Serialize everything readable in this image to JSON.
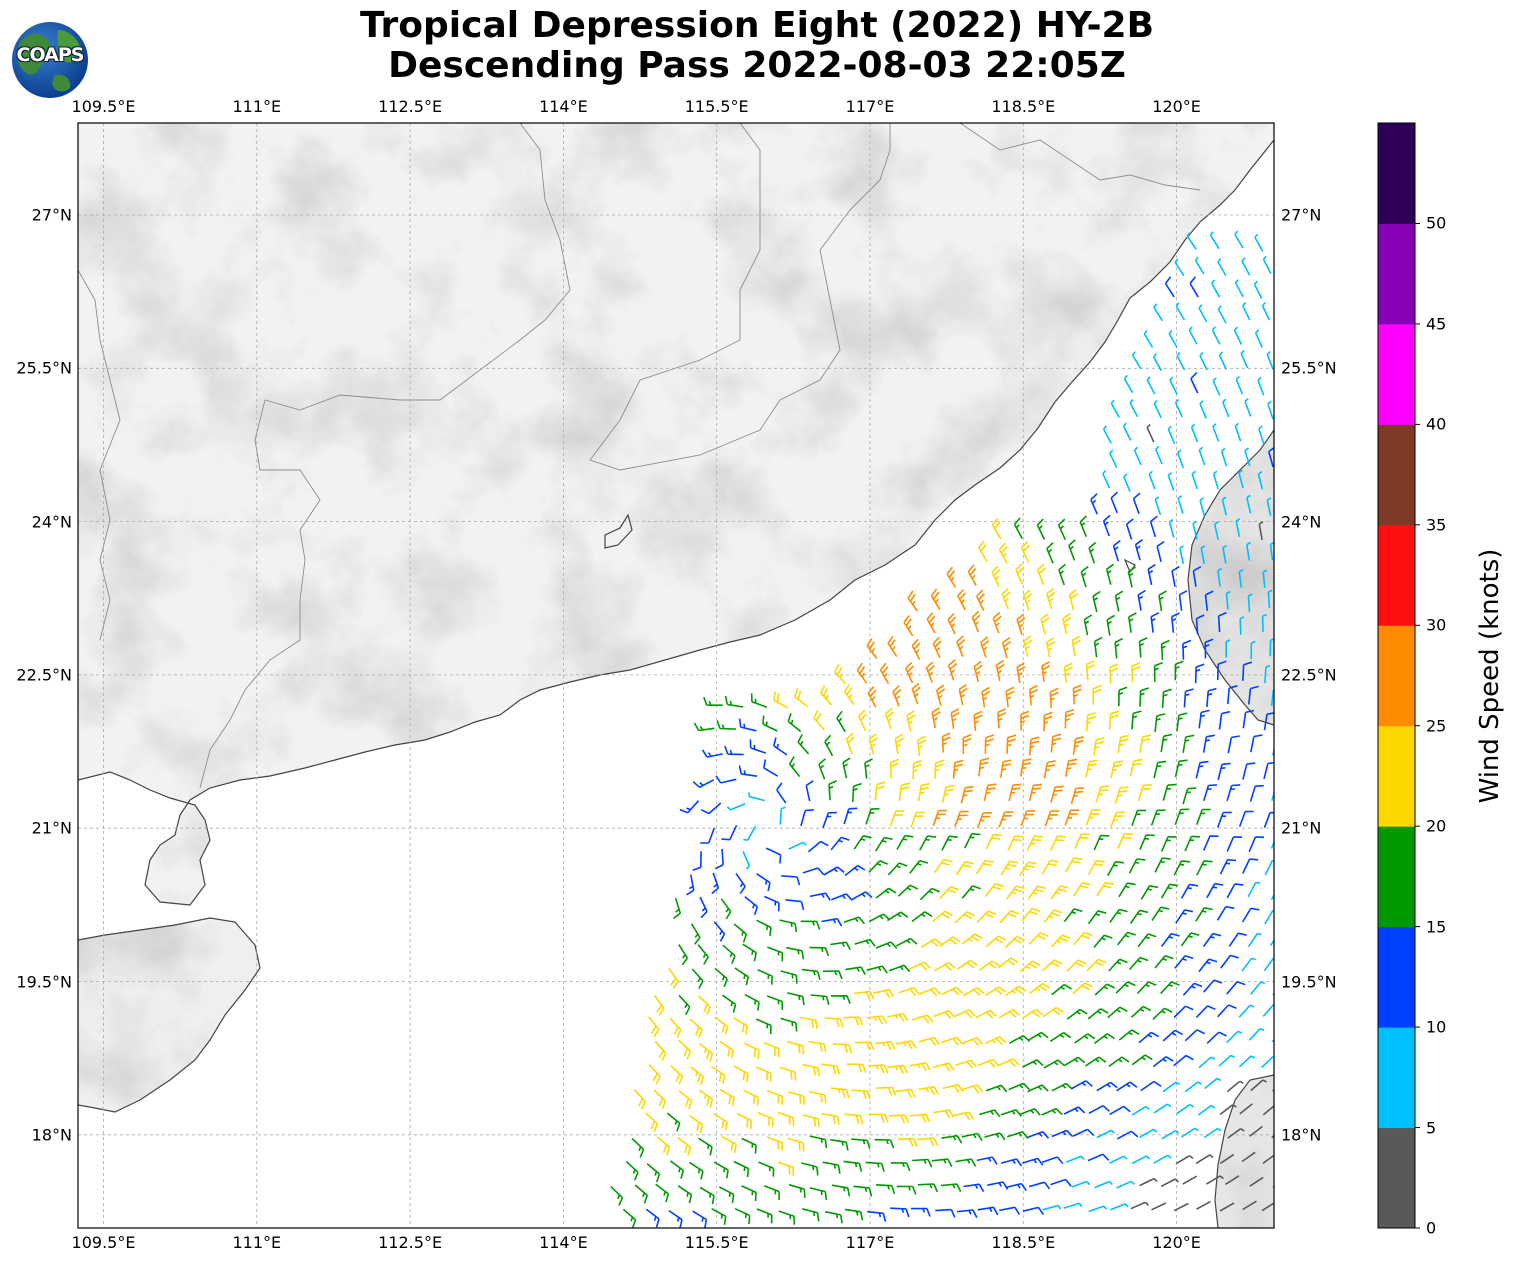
{
  "title": {
    "line1": "Tropical Depression Eight (2022) HY-2B",
    "line2": "Descending Pass 2022-08-03 22:05Z"
  },
  "logo": {
    "text": "COAPS",
    "icon": "globe-icon"
  },
  "map": {
    "lon_labels": [
      "109.5°E",
      "111°E",
      "112.5°E",
      "114°E",
      "115.5°E",
      "117°E",
      "118.5°E",
      "120°E"
    ],
    "lat_labels": [
      "27°N",
      "25.5°N",
      "24°N",
      "22.5°N",
      "21°N",
      "19.5°N",
      "18°N"
    ],
    "center_of_circulation": {
      "lon": 116.0,
      "lat": 21.0
    }
  },
  "colorbar": {
    "label": "Wind Speed (knots)",
    "ticks": [
      "0",
      "5",
      "10",
      "15",
      "20",
      "25",
      "30",
      "35",
      "40",
      "45",
      "50"
    ],
    "bins": [
      {
        "min": 0,
        "max": 5,
        "color": "#595959"
      },
      {
        "min": 5,
        "max": 10,
        "color": "#00bfff"
      },
      {
        "min": 10,
        "max": 15,
        "color": "#0040ff"
      },
      {
        "min": 15,
        "max": 20,
        "color": "#009900"
      },
      {
        "min": 20,
        "max": 25,
        "color": "#ffd700"
      },
      {
        "min": 25,
        "max": 30,
        "color": "#ff8c00"
      },
      {
        "min": 30,
        "max": 35,
        "color": "#ff1010"
      },
      {
        "min": 35,
        "max": 40,
        "color": "#7f3a26"
      },
      {
        "min": 40,
        "max": 45,
        "color": "#ff00ff"
      },
      {
        "min": 45,
        "max": 50,
        "color": "#8800b8"
      },
      {
        "min": 50,
        "max": 55,
        "color": "#2e0058"
      }
    ]
  }
}
